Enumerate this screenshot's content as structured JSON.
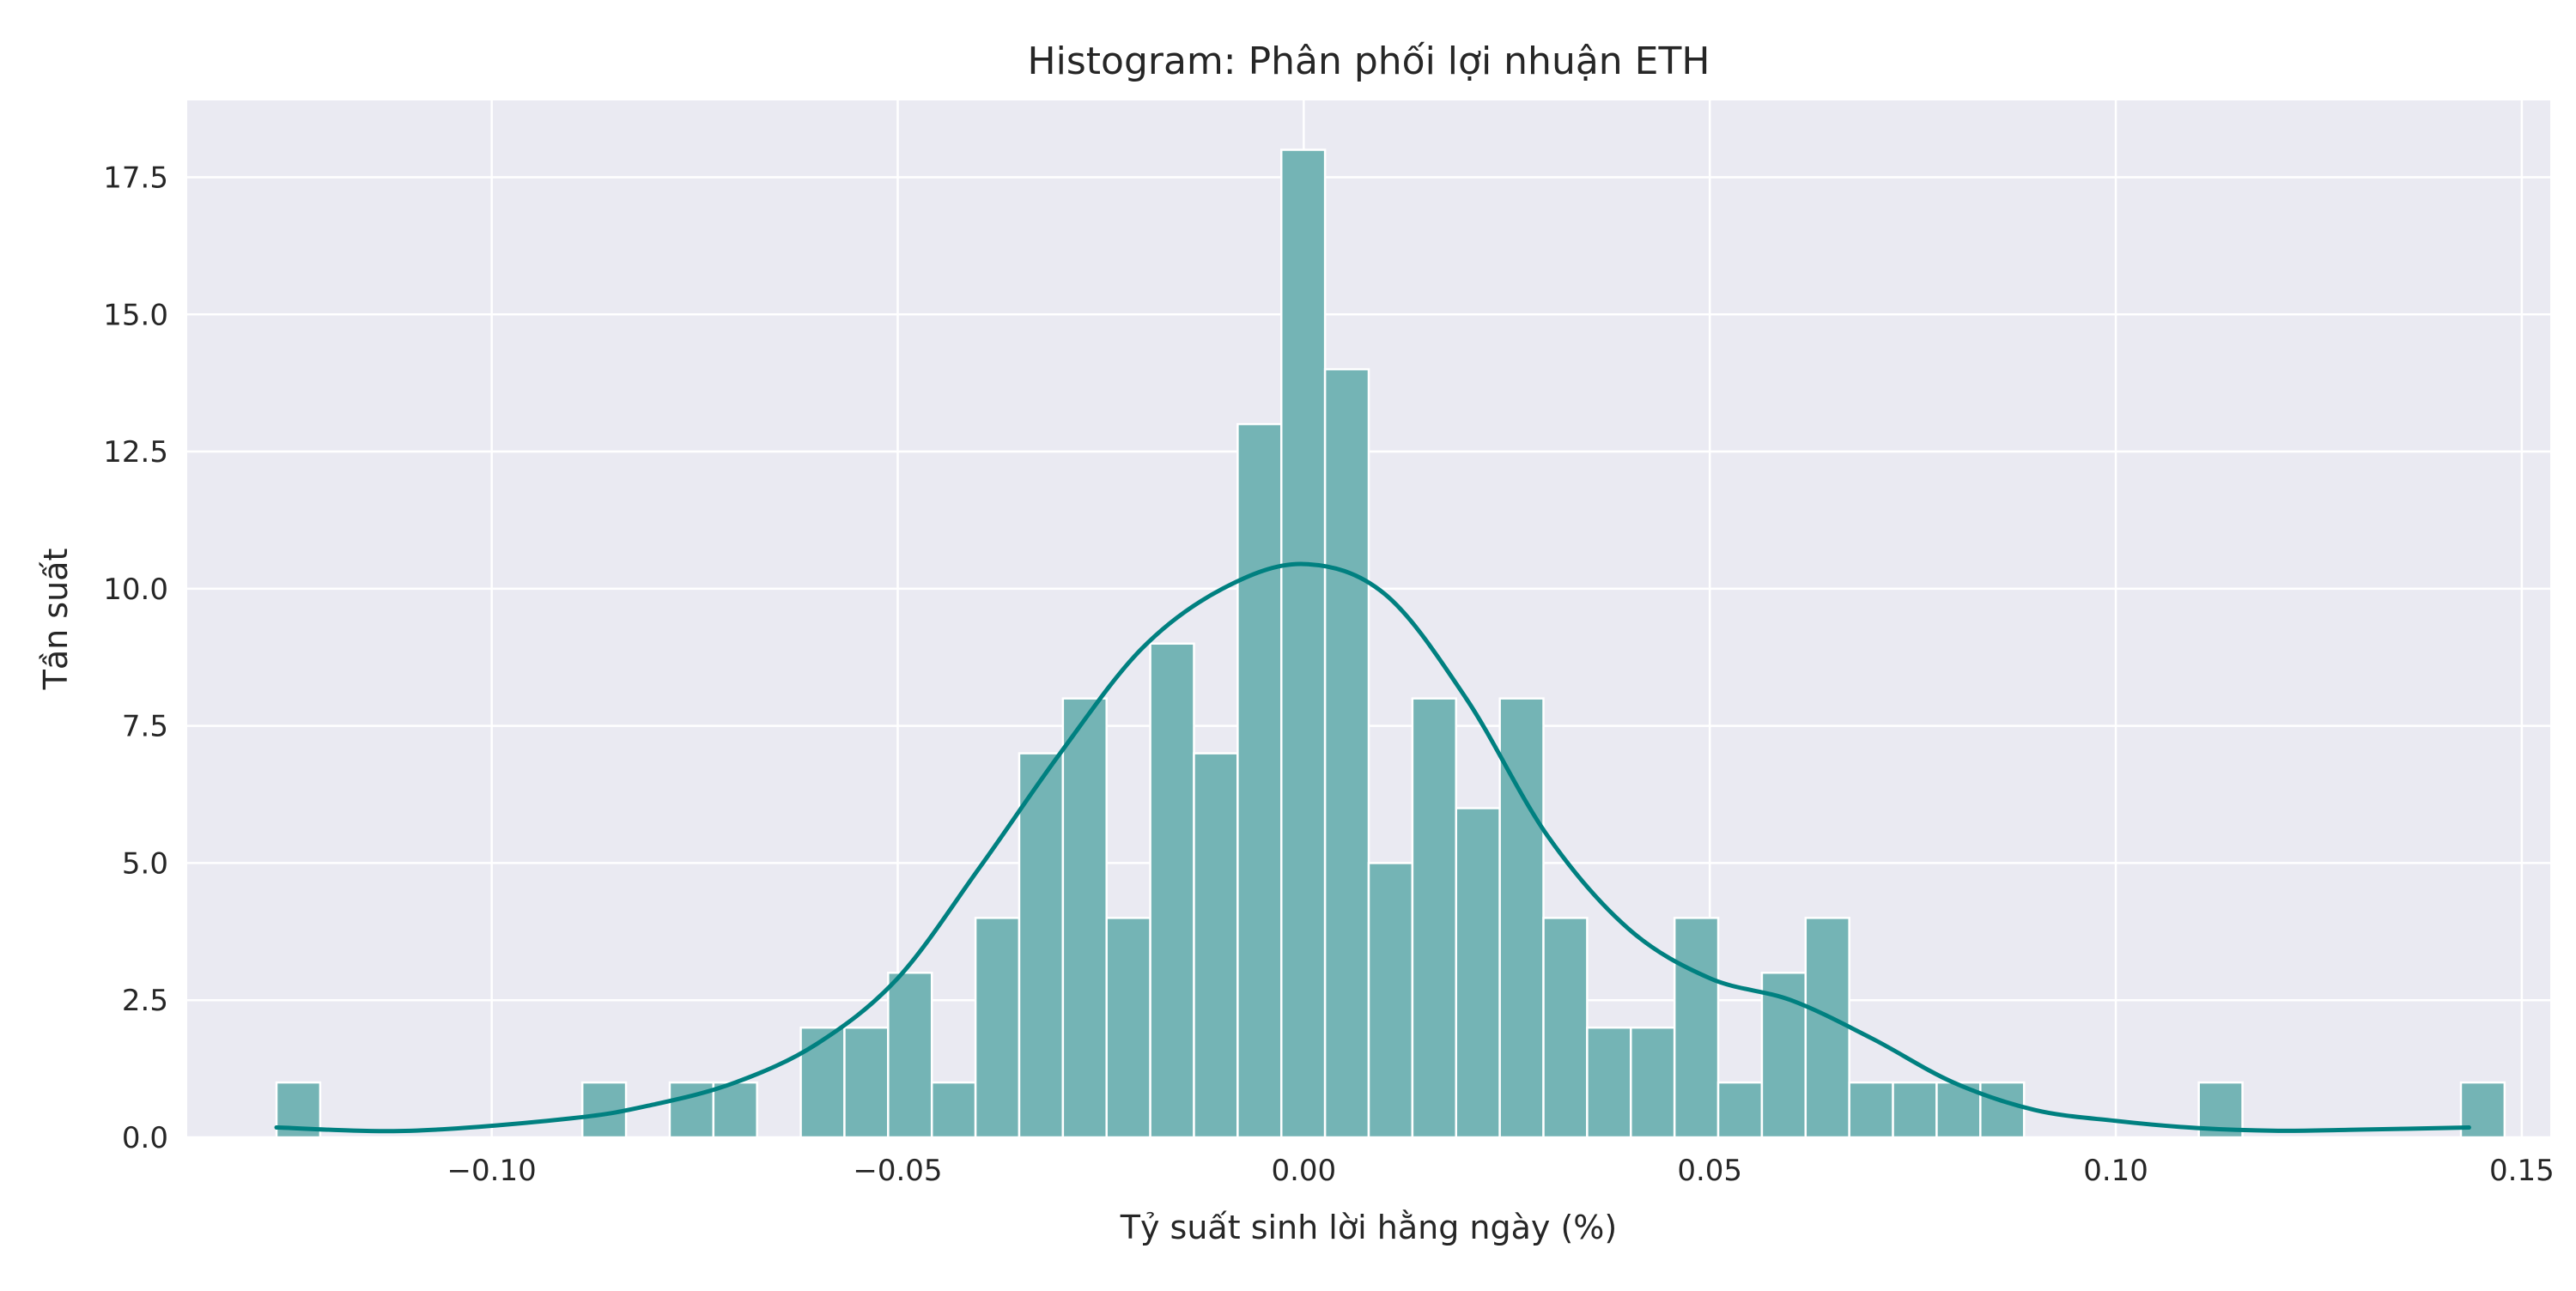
{
  "chart_data": {
    "type": "bar",
    "title": "Histogram: Phân phối lợi nhuận ETH",
    "xlabel": "Tỷ suất sinh lời hằng ngày (%)",
    "ylabel": "Tần suất",
    "xlim": [
      -0.1375,
      0.1535
    ],
    "ylim": [
      0,
      18.9
    ],
    "x_ticks": [
      {
        "value": -0.1,
        "label": "−0.10"
      },
      {
        "value": -0.05,
        "label": "−0.05"
      },
      {
        "value": 0.0,
        "label": "0.00"
      },
      {
        "value": 0.05,
        "label": "0.05"
      },
      {
        "value": 0.1,
        "label": "0.10"
      },
      {
        "value": 0.15,
        "label": "0.15"
      }
    ],
    "y_ticks": [
      {
        "value": 0,
        "label": "0.0"
      },
      {
        "value": 2.5,
        "label": "2.5"
      },
      {
        "value": 5,
        "label": "5.0"
      },
      {
        "value": 7.5,
        "label": "7.5"
      },
      {
        "value": 10,
        "label": "10.0"
      },
      {
        "value": 12.5,
        "label": "12.5"
      },
      {
        "value": 15,
        "label": "15.0"
      },
      {
        "value": 17.5,
        "label": "17.5"
      }
    ],
    "bin_start": -0.1265,
    "bin_width": 0.00538,
    "counts": [
      1,
      0,
      0,
      0,
      0,
      0,
      0,
      1,
      0,
      1,
      1,
      0,
      2,
      2,
      3,
      1,
      4,
      7,
      8,
      4,
      9,
      7,
      13,
      18,
      14,
      5,
      8,
      6,
      8,
      4,
      2,
      2,
      4,
      1,
      3,
      4,
      1,
      1,
      1,
      1,
      0,
      0,
      0,
      0,
      1,
      0,
      0,
      0,
      0,
      0,
      1
    ],
    "kde": {
      "x": [
        -0.1265,
        -0.11,
        -0.09,
        -0.08,
        -0.07,
        -0.06,
        -0.05,
        -0.04,
        -0.03,
        -0.02,
        -0.01,
        0.0,
        0.01,
        0.02,
        0.03,
        0.04,
        0.05,
        0.06,
        0.07,
        0.08,
        0.09,
        0.1,
        0.11,
        0.12,
        0.13,
        0.1435
      ],
      "y": [
        0.18,
        0.12,
        0.35,
        0.6,
        1.0,
        1.7,
        2.9,
        4.9,
        7.0,
        8.9,
        10.0,
        10.45,
        9.9,
        8.0,
        5.5,
        3.8,
        2.9,
        2.5,
        1.8,
        1.0,
        0.5,
        0.3,
        0.17,
        0.12,
        0.14,
        0.18
      ]
    },
    "grid": true,
    "colors": {
      "background": "#eaeaf2",
      "grid": "#ffffff",
      "bar_fill": "#74b4b5",
      "bar_edge": "#ffffff",
      "kde_line": "#008080",
      "text": "#262626"
    }
  }
}
